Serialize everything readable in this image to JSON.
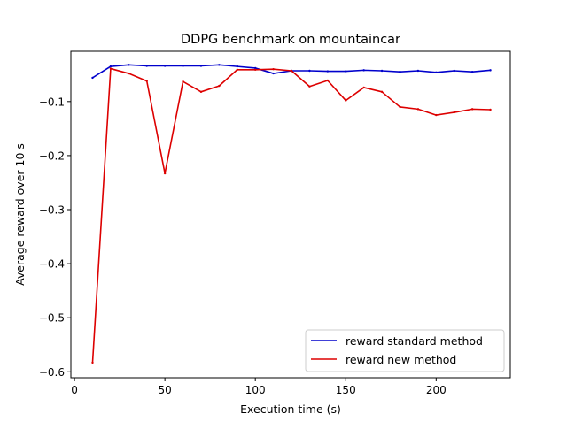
{
  "chart_data": {
    "type": "line",
    "title": "DDPG benchmark on mountaincar",
    "xlabel": "Execution time (s)",
    "ylabel": "Average reward over 10 s",
    "xlim": [
      -2.0,
      241.0
    ],
    "ylim": [
      -0.611,
      -0.007
    ],
    "x_ticks": [
      0,
      50,
      100,
      150,
      200
    ],
    "y_ticks": [
      -0.6,
      -0.5,
      -0.4,
      -0.3,
      -0.2,
      -0.1
    ],
    "x_tick_labels": [
      "0",
      "50",
      "100",
      "150",
      "200"
    ],
    "y_tick_labels": [
      "−0.6",
      "−0.5",
      "−0.4",
      "−0.3",
      "−0.2",
      "−0.1"
    ],
    "grid": false,
    "legend_position": "lower-right",
    "x": [
      10,
      20,
      30,
      40,
      50,
      60,
      70,
      80,
      90,
      100,
      110,
      120,
      130,
      140,
      150,
      160,
      170,
      180,
      190,
      200,
      210,
      220,
      230
    ],
    "series": [
      {
        "name": "reward standard method",
        "color": "#0000cc",
        "values": [
          -0.056,
          -0.035,
          -0.032,
          -0.034,
          -0.034,
          -0.034,
          -0.034,
          -0.032,
          -0.035,
          -0.038,
          -0.048,
          -0.043,
          -0.043,
          -0.044,
          -0.044,
          -0.042,
          -0.043,
          -0.045,
          -0.043,
          -0.046,
          -0.043,
          -0.045,
          -0.042
        ]
      },
      {
        "name": "reward new method",
        "color": "#dd0000",
        "values": [
          -0.583,
          -0.039,
          -0.048,
          -0.062,
          -0.233,
          -0.063,
          -0.082,
          -0.071,
          -0.041,
          -0.041,
          -0.04,
          -0.043,
          -0.072,
          -0.061,
          -0.098,
          -0.074,
          -0.082,
          -0.11,
          -0.114,
          -0.125,
          -0.12,
          -0.114,
          -0.115
        ]
      }
    ]
  }
}
